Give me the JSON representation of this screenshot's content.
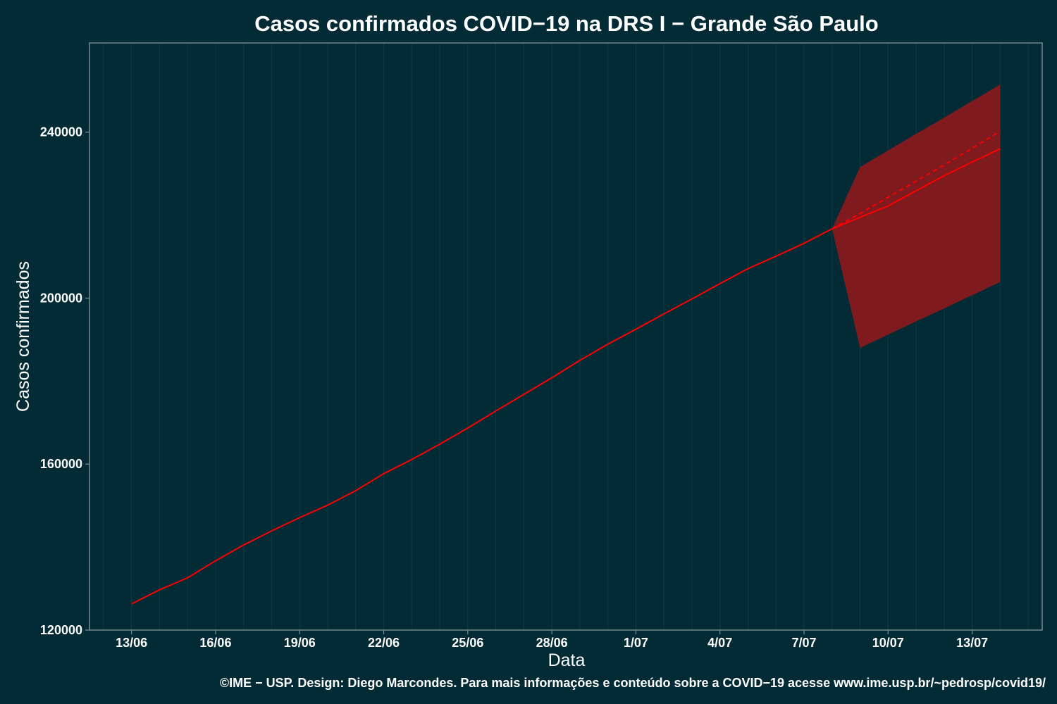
{
  "chart_data": {
    "type": "line",
    "title": "Casos confirmados COVID−19 na DRS I − Grande São Paulo",
    "xlabel": "Data",
    "ylabel": "Casos confirmados",
    "caption": "©IME − USP. Design: Diego Marcondes. Para mais informações e conteúdo sobre a COVID−19 acesse www.ime.usp.br/~pedrosp/covid19/",
    "x_ticks": [
      {
        "day": 0,
        "label": "13/06"
      },
      {
        "day": 3,
        "label": "16/06"
      },
      {
        "day": 6,
        "label": "19/06"
      },
      {
        "day": 9,
        "label": "22/06"
      },
      {
        "day": 12,
        "label": "25/06"
      },
      {
        "day": 15,
        "label": "28/06"
      },
      {
        "day": 18,
        "label": "1/07"
      },
      {
        "day": 21,
        "label": "4/07"
      },
      {
        "day": 24,
        "label": "7/07"
      },
      {
        "day": 27,
        "label": "10/07"
      },
      {
        "day": 30,
        "label": "13/07"
      }
    ],
    "xlim": [
      -1.5,
      32.5
    ],
    "y_ticks": [
      120000,
      160000,
      200000,
      240000
    ],
    "ylim": [
      120000,
      261500
    ],
    "grid": true,
    "colors": {
      "background": "#022b36",
      "line": "#ff0000",
      "band": "#7f1a1e",
      "grid": "#0f3a45",
      "frame": "#7d8f94"
    },
    "series": [
      {
        "kind": "observed",
        "x": [
          0,
          1,
          2,
          3,
          4,
          5,
          6,
          7,
          8,
          9,
          10,
          11,
          12,
          13,
          14,
          15,
          16,
          17,
          18,
          19,
          20,
          21,
          22,
          23,
          24,
          25
        ],
        "values": [
          126300,
          129700,
          132600,
          136700,
          140500,
          143900,
          147100,
          150100,
          153600,
          157700,
          161100,
          164800,
          168700,
          172800,
          176800,
          180800,
          185000,
          188900,
          192500,
          196200,
          199800,
          203500,
          207100,
          210100,
          213200,
          216700
        ]
      },
      {
        "kind": "forecast",
        "x": [
          25,
          26,
          27,
          28,
          29,
          30,
          31
        ],
        "values": [
          216700,
          219500,
          222200,
          225900,
          229500,
          232800,
          236000
        ]
      },
      {
        "kind": "forecast-alt",
        "style": "dashed",
        "x": [
          25,
          26,
          27,
          28,
          29,
          30,
          31
        ],
        "values": [
          216700,
          220400,
          224300,
          228200,
          232100,
          236100,
          240200
        ]
      }
    ],
    "interval": {
      "x": [
        25,
        26,
        27,
        28,
        29,
        30,
        31
      ],
      "lower": [
        216700,
        188000,
        191200,
        194400,
        197500,
        200700,
        203900
      ],
      "upper": [
        216700,
        231600,
        235600,
        239600,
        243500,
        247500,
        251500
      ]
    }
  }
}
